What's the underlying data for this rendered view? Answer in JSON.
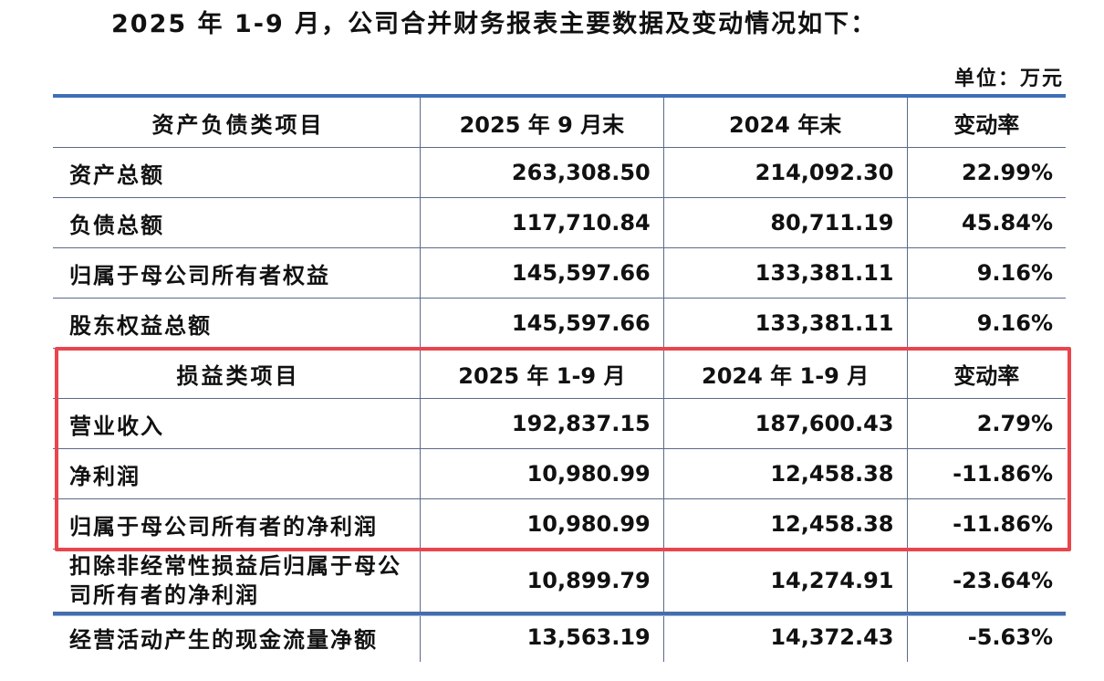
{
  "title": "2025 年 1-9 月，公司合并财务报表主要数据及变动情况如下：",
  "unit": "单位：万元",
  "balance_header": [
    "资产负债类项目",
    "2025 年 9 月末",
    "2024 年末",
    "变动率"
  ],
  "balance_rows": [
    [
      "资产总额",
      "263,308.50",
      "214,092.30",
      "22.99%"
    ],
    [
      "负债总额",
      "117,710.84",
      "80,711.19",
      "45.84%"
    ],
    [
      "归属于母公司所有者权益",
      "145,597.66",
      "133,381.11",
      "9.16%"
    ],
    [
      "股东权益总额",
      "145,597.66",
      "133,381.11",
      "9.16%"
    ]
  ],
  "income_header": [
    "损益类项目",
    "2025 年 1-9 月",
    "2024 年 1-9 月",
    "变动率"
  ],
  "income_rows": [
    [
      "营业收入",
      "192,837.15",
      "187,600.43",
      "2.79%"
    ],
    [
      "净利润",
      "10,980.99",
      "12,458.38",
      "-11.86%"
    ],
    [
      "归属于母公司所有者的净利润",
      "10,980.99",
      "12,458.38",
      "-11.86%"
    ],
    [
      "扣除非经常性损益后归属于母公司所有者的净利润",
      "10,899.79",
      "14,274.91",
      "-23.64%"
    ],
    [
      "经营活动产生的现金流量净额",
      "13,563.19",
      "14,372.43",
      "-5.63%"
    ]
  ],
  "colors": {
    "rule": "#3e6fb5",
    "highlight": "#e8454d"
  }
}
